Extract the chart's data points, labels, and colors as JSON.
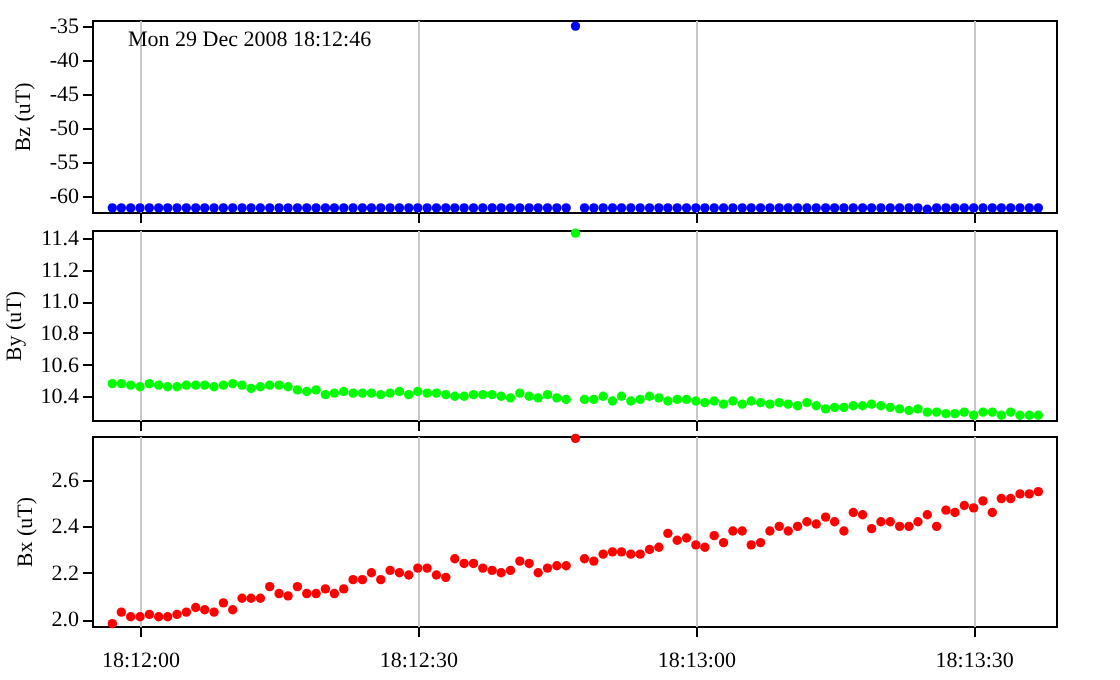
{
  "chart_data": [
    {
      "type": "scatter",
      "ylabel": "Bz (uT)",
      "annotations": [
        "Mon 29 Dec 2008 18:12:46"
      ],
      "color": "#0000ff",
      "marker": "circle",
      "grid": "x",
      "tick_labels": "y",
      "x": [
        18.19917,
        18.19944,
        18.19972,
        18.2,
        18.20028,
        18.20056,
        18.20083,
        18.20111,
        18.20139,
        18.20167,
        18.20194,
        18.20222,
        18.2025,
        18.20278,
        18.20306,
        18.20333,
        18.20361,
        18.20389,
        18.20417,
        18.20444,
        18.20472,
        18.205,
        18.20528,
        18.20556,
        18.20583,
        18.20611,
        18.20639,
        18.20667,
        18.20694,
        18.20722,
        18.2075,
        18.20778,
        18.20806,
        18.20833,
        18.20861,
        18.20889,
        18.20917,
        18.20944,
        18.20972,
        18.21,
        18.21028,
        18.21056,
        18.21083,
        18.21111,
        18.21139,
        18.21167,
        18.21194,
        18.21222,
        18.2125,
        18.21278,
        18.21306,
        18.21333,
        18.21361,
        18.21389,
        18.21417,
        18.21444,
        18.21472,
        18.215,
        18.21528,
        18.21556,
        18.21583,
        18.21611,
        18.21639,
        18.21667,
        18.21694,
        18.21722,
        18.2175,
        18.21778,
        18.21806,
        18.21833,
        18.21861,
        18.21889,
        18.21917,
        18.21944,
        18.21972,
        18.22,
        18.22028,
        18.22056,
        18.22083,
        18.22111,
        18.22139,
        18.22167,
        18.22194,
        18.22222,
        18.2225,
        18.22278,
        18.22306,
        18.22333,
        18.22361,
        18.22389,
        18.22417,
        18.22444,
        18.22472,
        18.225,
        18.22528,
        18.22556,
        18.22583,
        18.22611,
        18.22639,
        18.22667,
        18.22694
      ],
      "values": [
        -61.8,
        -61.8,
        -61.8,
        -61.8,
        -61.8,
        -61.8,
        -61.8,
        -61.8,
        -61.8,
        -61.8,
        -61.8,
        -61.8,
        -61.8,
        -61.8,
        -61.8,
        -61.8,
        -61.8,
        -61.8,
        -61.8,
        -61.8,
        -61.8,
        -61.8,
        -61.8,
        -61.8,
        -61.8,
        -61.8,
        -61.8,
        -61.8,
        -61.8,
        -61.8,
        -61.8,
        -61.8,
        -61.8,
        -61.8,
        -61.8,
        -61.8,
        -61.8,
        -61.8,
        -61.8,
        -61.8,
        -61.8,
        -61.8,
        -61.8,
        -61.8,
        -61.8,
        -61.8,
        -61.8,
        -61.8,
        -61.8,
        -61.8,
        -35,
        -61.8,
        -61.8,
        -61.8,
        -61.8,
        -61.8,
        -61.8,
        -61.8,
        -61.8,
        -61.8,
        -61.8,
        -61.8,
        -61.8,
        -61.8,
        -61.8,
        -61.8,
        -61.8,
        -61.8,
        -61.8,
        -61.8,
        -61.8,
        -61.8,
        -61.8,
        -61.8,
        -61.8,
        -61.8,
        -61.8,
        -61.8,
        -61.8,
        -61.8,
        -61.8,
        -61.8,
        -61.8,
        -61.8,
        -61.8,
        -61.8,
        -61.8,
        -61.8,
        -62.0,
        -61.8,
        -61.8,
        -61.8,
        -61.8,
        -61.8,
        -61.8,
        -61.8,
        -61.8,
        -61.8,
        -61.8,
        -61.8,
        -61.8
      ],
      "xlim": [
        18.19856,
        18.22747
      ],
      "xticks": [
        {
          "value": 18.2,
          "label": null
        },
        {
          "value": 18.20833,
          "label": null
        },
        {
          "value": 18.21667,
          "label": null
        },
        {
          "value": 18.225,
          "label": null
        }
      ],
      "ylim": [
        -62.4,
        -34.1
      ],
      "yticks": [
        -60,
        -55,
        -50,
        -45,
        -40,
        -35
      ]
    },
    {
      "type": "scatter",
      "ylabel": "By (uT)",
      "color": "#00ff00",
      "marker": "circle",
      "grid": "x",
      "tick_labels": "y",
      "x": [
        18.19917,
        18.19944,
        18.19972,
        18.2,
        18.20028,
        18.20056,
        18.20083,
        18.20111,
        18.20139,
        18.20167,
        18.20194,
        18.20222,
        18.2025,
        18.20278,
        18.20306,
        18.20333,
        18.20361,
        18.20389,
        18.20417,
        18.20444,
        18.20472,
        18.205,
        18.20528,
        18.20556,
        18.20583,
        18.20611,
        18.20639,
        18.20667,
        18.20694,
        18.20722,
        18.2075,
        18.20778,
        18.20806,
        18.20833,
        18.20861,
        18.20889,
        18.20917,
        18.20944,
        18.20972,
        18.21,
        18.21028,
        18.21056,
        18.21083,
        18.21111,
        18.21139,
        18.21167,
        18.21194,
        18.21222,
        18.2125,
        18.21278,
        18.21306,
        18.21333,
        18.21361,
        18.21389,
        18.21417,
        18.21444,
        18.21472,
        18.215,
        18.21528,
        18.21556,
        18.21583,
        18.21611,
        18.21639,
        18.21667,
        18.21694,
        18.21722,
        18.2175,
        18.21778,
        18.21806,
        18.21833,
        18.21861,
        18.21889,
        18.21917,
        18.21944,
        18.21972,
        18.22,
        18.22028,
        18.22056,
        18.22083,
        18.22111,
        18.22139,
        18.22167,
        18.22194,
        18.22222,
        18.2225,
        18.22278,
        18.22306,
        18.22333,
        18.22361,
        18.22389,
        18.22417,
        18.22444,
        18.22472,
        18.225,
        18.22528,
        18.22556,
        18.22583,
        18.22611,
        18.22639,
        18.22667,
        18.22694
      ],
      "values": [
        10.48,
        10.48,
        10.47,
        10.46,
        10.48,
        10.47,
        10.46,
        10.46,
        10.47,
        10.47,
        10.47,
        10.46,
        10.47,
        10.48,
        10.47,
        10.45,
        10.46,
        10.47,
        10.47,
        10.46,
        10.44,
        10.43,
        10.44,
        10.41,
        10.42,
        10.43,
        10.42,
        10.42,
        10.42,
        10.41,
        10.42,
        10.43,
        10.41,
        10.43,
        10.42,
        10.42,
        10.41,
        10.4,
        10.4,
        10.41,
        10.41,
        10.41,
        10.4,
        10.39,
        10.42,
        10.4,
        10.39,
        10.41,
        10.39,
        10.38,
        11.43,
        10.38,
        10.38,
        10.4,
        10.37,
        10.4,
        10.37,
        10.38,
        10.4,
        10.39,
        10.37,
        10.38,
        10.38,
        10.37,
        10.36,
        10.37,
        10.35,
        10.37,
        10.35,
        10.37,
        10.36,
        10.35,
        10.36,
        10.35,
        10.34,
        10.36,
        10.34,
        10.32,
        10.33,
        10.33,
        10.34,
        10.34,
        10.35,
        10.34,
        10.33,
        10.32,
        10.31,
        10.32,
        10.3,
        10.3,
        10.29,
        10.29,
        10.3,
        10.28,
        10.3,
        10.3,
        10.28,
        10.3,
        10.28,
        10.28,
        10.28
      ],
      "xlim": [
        18.19856,
        18.22747
      ],
      "xticks": [
        {
          "value": 18.2,
          "label": null
        },
        {
          "value": 18.20833,
          "label": null
        },
        {
          "value": 18.21667,
          "label": null
        },
        {
          "value": 18.225,
          "label": null
        }
      ],
      "ylim": [
        10.25,
        11.45
      ],
      "yticks": [
        10.4,
        10.6,
        10.8,
        {
          "value": 11,
          "label": "11.0"
        },
        11.2,
        11.4
      ]
    },
    {
      "type": "scatter",
      "ylabel": "Bx (uT)",
      "color": "#ff0000",
      "marker": "circle",
      "grid": "x",
      "x": [
        18.19917,
        18.19944,
        18.19972,
        18.2,
        18.20028,
        18.20056,
        18.20083,
        18.20111,
        18.20139,
        18.20167,
        18.20194,
        18.20222,
        18.2025,
        18.20278,
        18.20306,
        18.20333,
        18.20361,
        18.20389,
        18.20417,
        18.20444,
        18.20472,
        18.205,
        18.20528,
        18.20556,
        18.20583,
        18.20611,
        18.20639,
        18.20667,
        18.20694,
        18.20722,
        18.2075,
        18.20778,
        18.20806,
        18.20833,
        18.20861,
        18.20889,
        18.20917,
        18.20944,
        18.20972,
        18.21,
        18.21028,
        18.21056,
        18.21083,
        18.21111,
        18.21139,
        18.21167,
        18.21194,
        18.21222,
        18.2125,
        18.21278,
        18.21306,
        18.21333,
        18.21361,
        18.21389,
        18.21417,
        18.21444,
        18.21472,
        18.215,
        18.21528,
        18.21556,
        18.21583,
        18.21611,
        18.21639,
        18.21667,
        18.21694,
        18.21722,
        18.2175,
        18.21778,
        18.21806,
        18.21833,
        18.21861,
        18.21889,
        18.21917,
        18.21944,
        18.21972,
        18.22,
        18.22028,
        18.22056,
        18.22083,
        18.22111,
        18.22139,
        18.22167,
        18.22194,
        18.22222,
        18.2225,
        18.22278,
        18.22306,
        18.22333,
        18.22361,
        18.22389,
        18.22417,
        18.22444,
        18.22472,
        18.225,
        18.22528,
        18.22556,
        18.22583,
        18.22611,
        18.22639,
        18.22667,
        18.22694
      ],
      "values": [
        1.98,
        2.03,
        2.01,
        2.01,
        2.02,
        2.01,
        2.01,
        2.02,
        2.03,
        2.05,
        2.04,
        2.03,
        2.07,
        2.04,
        2.09,
        2.09,
        2.09,
        2.14,
        2.11,
        2.1,
        2.14,
        2.11,
        2.11,
        2.13,
        2.11,
        2.13,
        2.17,
        2.17,
        2.2,
        2.17,
        2.21,
        2.2,
        2.19,
        2.22,
        2.22,
        2.19,
        2.18,
        2.26,
        2.24,
        2.24,
        2.22,
        2.21,
        2.2,
        2.21,
        2.25,
        2.24,
        2.2,
        2.22,
        2.23,
        2.23,
        2.78,
        2.26,
        2.25,
        2.28,
        2.29,
        2.29,
        2.28,
        2.28,
        2.3,
        2.31,
        2.37,
        2.34,
        2.35,
        2.32,
        2.31,
        2.36,
        2.33,
        2.38,
        2.38,
        2.32,
        2.33,
        2.38,
        2.4,
        2.38,
        2.4,
        2.42,
        2.41,
        2.44,
        2.42,
        2.38,
        2.46,
        2.45,
        2.39,
        2.42,
        2.42,
        2.4,
        2.4,
        2.42,
        2.45,
        2.4,
        2.47,
        2.46,
        2.49,
        2.48,
        2.51,
        2.46,
        2.52,
        2.52,
        2.54,
        2.54,
        2.55
      ],
      "xlim": [
        18.19856,
        18.22747
      ],
      "xticks": [
        {
          "value": 18.2,
          "label": "18:12:00"
        },
        {
          "value": 18.20833,
          "label": "18:12:30"
        },
        {
          "value": 18.21667,
          "label": "18:13:00"
        },
        {
          "value": 18.225,
          "label": "18:13:30"
        }
      ],
      "ylim": [
        1.97,
        2.79
      ],
      "yticks": [
        {
          "value": 2,
          "label": "2.0"
        },
        2.2,
        2.4,
        2.6
      ]
    }
  ]
}
